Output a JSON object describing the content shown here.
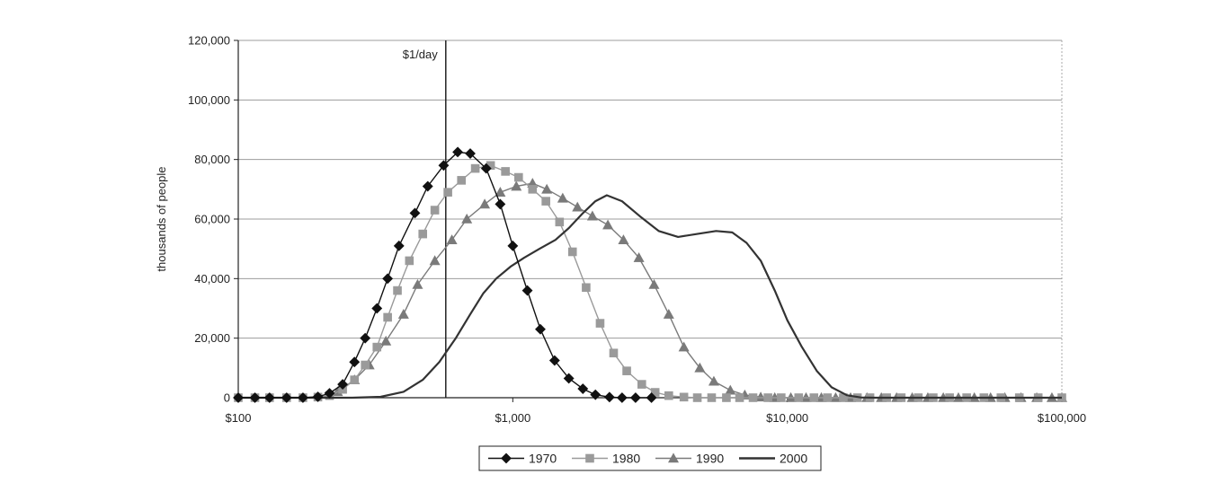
{
  "chart_data": {
    "type": "line",
    "title": "",
    "xlabel": "",
    "ylabel": "thousands of people",
    "x_scale": "log",
    "xlim": [
      100,
      100000
    ],
    "ylim": [
      0,
      120000
    ],
    "grid": true,
    "legend_position": "bottom-center",
    "x_ticks": [
      100,
      1000,
      10000,
      100000
    ],
    "x_tick_labels": [
      "$100",
      "$1,000",
      "$10,000",
      "$100,000"
    ],
    "y_ticks": [
      0,
      20000,
      40000,
      60000,
      80000,
      100000,
      120000
    ],
    "y_tick_labels": [
      "0",
      "20,000",
      "40,000",
      "60,000",
      "80,000",
      "100,000",
      "120,000"
    ],
    "reference_line": {
      "label": "$1/day",
      "x": 570
    },
    "series": [
      {
        "name": "1970",
        "color": "#111111",
        "marker": "diamond",
        "points": [
          [
            100,
            0
          ],
          [
            115,
            0
          ],
          [
            130,
            0
          ],
          [
            150,
            0
          ],
          [
            172,
            0
          ],
          [
            195,
            300
          ],
          [
            215,
            1500
          ],
          [
            240,
            4500
          ],
          [
            265,
            12000
          ],
          [
            290,
            20000
          ],
          [
            320,
            30000
          ],
          [
            350,
            40000
          ],
          [
            385,
            51000
          ],
          [
            440,
            62000
          ],
          [
            490,
            71000
          ],
          [
            560,
            78000
          ],
          [
            630,
            82500
          ],
          [
            700,
            82000
          ],
          [
            800,
            77000
          ],
          [
            900,
            65000
          ],
          [
            1000,
            51000
          ],
          [
            1130,
            36000
          ],
          [
            1260,
            23000
          ],
          [
            1420,
            12500
          ],
          [
            1600,
            6500
          ],
          [
            1800,
            3000
          ],
          [
            2000,
            1000
          ],
          [
            2250,
            200
          ],
          [
            2500,
            0
          ],
          [
            2800,
            0
          ],
          [
            3200,
            0
          ]
        ]
      },
      {
        "name": "1980",
        "color": "#9a9a9a",
        "marker": "square",
        "points": [
          [
            100,
            0
          ],
          [
            115,
            0
          ],
          [
            130,
            0
          ],
          [
            150,
            0
          ],
          [
            172,
            0
          ],
          [
            195,
            200
          ],
          [
            215,
            700
          ],
          [
            240,
            2800
          ],
          [
            265,
            6000
          ],
          [
            290,
            11000
          ],
          [
            320,
            17000
          ],
          [
            350,
            27000
          ],
          [
            380,
            36000
          ],
          [
            420,
            46000
          ],
          [
            470,
            55000
          ],
          [
            520,
            63000
          ],
          [
            580,
            69000
          ],
          [
            650,
            73000
          ],
          [
            730,
            77000
          ],
          [
            830,
            78000
          ],
          [
            940,
            76000
          ],
          [
            1050,
            74000
          ],
          [
            1180,
            70000
          ],
          [
            1320,
            66000
          ],
          [
            1480,
            59000
          ],
          [
            1650,
            49000
          ],
          [
            1850,
            37000
          ],
          [
            2080,
            25000
          ],
          [
            2330,
            15000
          ],
          [
            2600,
            9000
          ],
          [
            2950,
            4500
          ],
          [
            3300,
            1800
          ],
          [
            3700,
            700
          ],
          [
            4200,
            200
          ],
          [
            4700,
            0
          ],
          [
            5300,
            0
          ],
          [
            6000,
            0
          ],
          [
            6700,
            0
          ],
          [
            7500,
            0
          ],
          [
            8500,
            0
          ],
          [
            9500,
            0
          ],
          [
            11000,
            0
          ],
          [
            12500,
            0
          ],
          [
            14000,
            0
          ],
          [
            16000,
            0
          ],
          [
            18000,
            0
          ],
          [
            20000,
            0
          ],
          [
            23000,
            0
          ],
          [
            26000,
            0
          ],
          [
            30000,
            0
          ],
          [
            34000,
            0
          ],
          [
            39000,
            0
          ],
          [
            45000,
            0
          ],
          [
            52000,
            0
          ],
          [
            60000,
            0
          ],
          [
            70000,
            0
          ],
          [
            82000,
            0
          ],
          [
            100000,
            0
          ]
        ]
      },
      {
        "name": "1990",
        "color": "#7a7a7a",
        "marker": "triangle",
        "points": [
          [
            230,
            2000
          ],
          [
            265,
            6000
          ],
          [
            300,
            11000
          ],
          [
            345,
            19000
          ],
          [
            400,
            28000
          ],
          [
            450,
            38000
          ],
          [
            520,
            46000
          ],
          [
            600,
            53000
          ],
          [
            680,
            60000
          ],
          [
            790,
            65000
          ],
          [
            900,
            69000
          ],
          [
            1030,
            71000
          ],
          [
            1180,
            72000
          ],
          [
            1330,
            70000
          ],
          [
            1520,
            67000
          ],
          [
            1720,
            64000
          ],
          [
            1950,
            61000
          ],
          [
            2220,
            58000
          ],
          [
            2530,
            53000
          ],
          [
            2880,
            47000
          ],
          [
            3270,
            38000
          ],
          [
            3700,
            28000
          ],
          [
            4200,
            17000
          ],
          [
            4800,
            10000
          ],
          [
            5400,
            5500
          ],
          [
            6200,
            2500
          ],
          [
            7000,
            900
          ],
          [
            8000,
            200
          ],
          [
            9000,
            0
          ],
          [
            10300,
            0
          ],
          [
            11700,
            0
          ],
          [
            13300,
            0
          ],
          [
            15000,
            0
          ],
          [
            17000,
            0
          ],
          [
            19500,
            0
          ],
          [
            22000,
            0
          ],
          [
            25000,
            0
          ],
          [
            28500,
            0
          ],
          [
            32500,
            0
          ],
          [
            37000,
            0
          ],
          [
            42000,
            0
          ],
          [
            48000,
            0
          ],
          [
            55000,
            0
          ],
          [
            62000,
            0
          ],
          [
            71000,
            0
          ],
          [
            81000,
            0
          ],
          [
            92000,
            0
          ],
          [
            100000,
            0
          ]
        ]
      },
      {
        "name": "2000",
        "color": "#333333",
        "marker": "none",
        "points": [
          [
            100,
            0
          ],
          [
            260,
            0
          ],
          [
            330,
            300
          ],
          [
            400,
            2000
          ],
          [
            470,
            6000
          ],
          [
            540,
            12000
          ],
          [
            620,
            20000
          ],
          [
            700,
            28000
          ],
          [
            780,
            35000
          ],
          [
            870,
            40000
          ],
          [
            980,
            44000
          ],
          [
            1100,
            47000
          ],
          [
            1250,
            50000
          ],
          [
            1430,
            53000
          ],
          [
            1600,
            57000
          ],
          [
            1800,
            62000
          ],
          [
            2000,
            66000
          ],
          [
            2200,
            68000
          ],
          [
            2500,
            66000
          ],
          [
            2900,
            61000
          ],
          [
            3400,
            56000
          ],
          [
            4000,
            54000
          ],
          [
            4700,
            55000
          ],
          [
            5500,
            56000
          ],
          [
            6300,
            55500
          ],
          [
            7100,
            52000
          ],
          [
            8000,
            46000
          ],
          [
            9000,
            36000
          ],
          [
            10000,
            26000
          ],
          [
            11300,
            17000
          ],
          [
            12800,
            9000
          ],
          [
            14500,
            3500
          ],
          [
            16500,
            800
          ],
          [
            18500,
            100
          ],
          [
            21000,
            0
          ],
          [
            30000,
            0
          ],
          [
            60000,
            0
          ],
          [
            100000,
            0
          ]
        ]
      }
    ]
  }
}
